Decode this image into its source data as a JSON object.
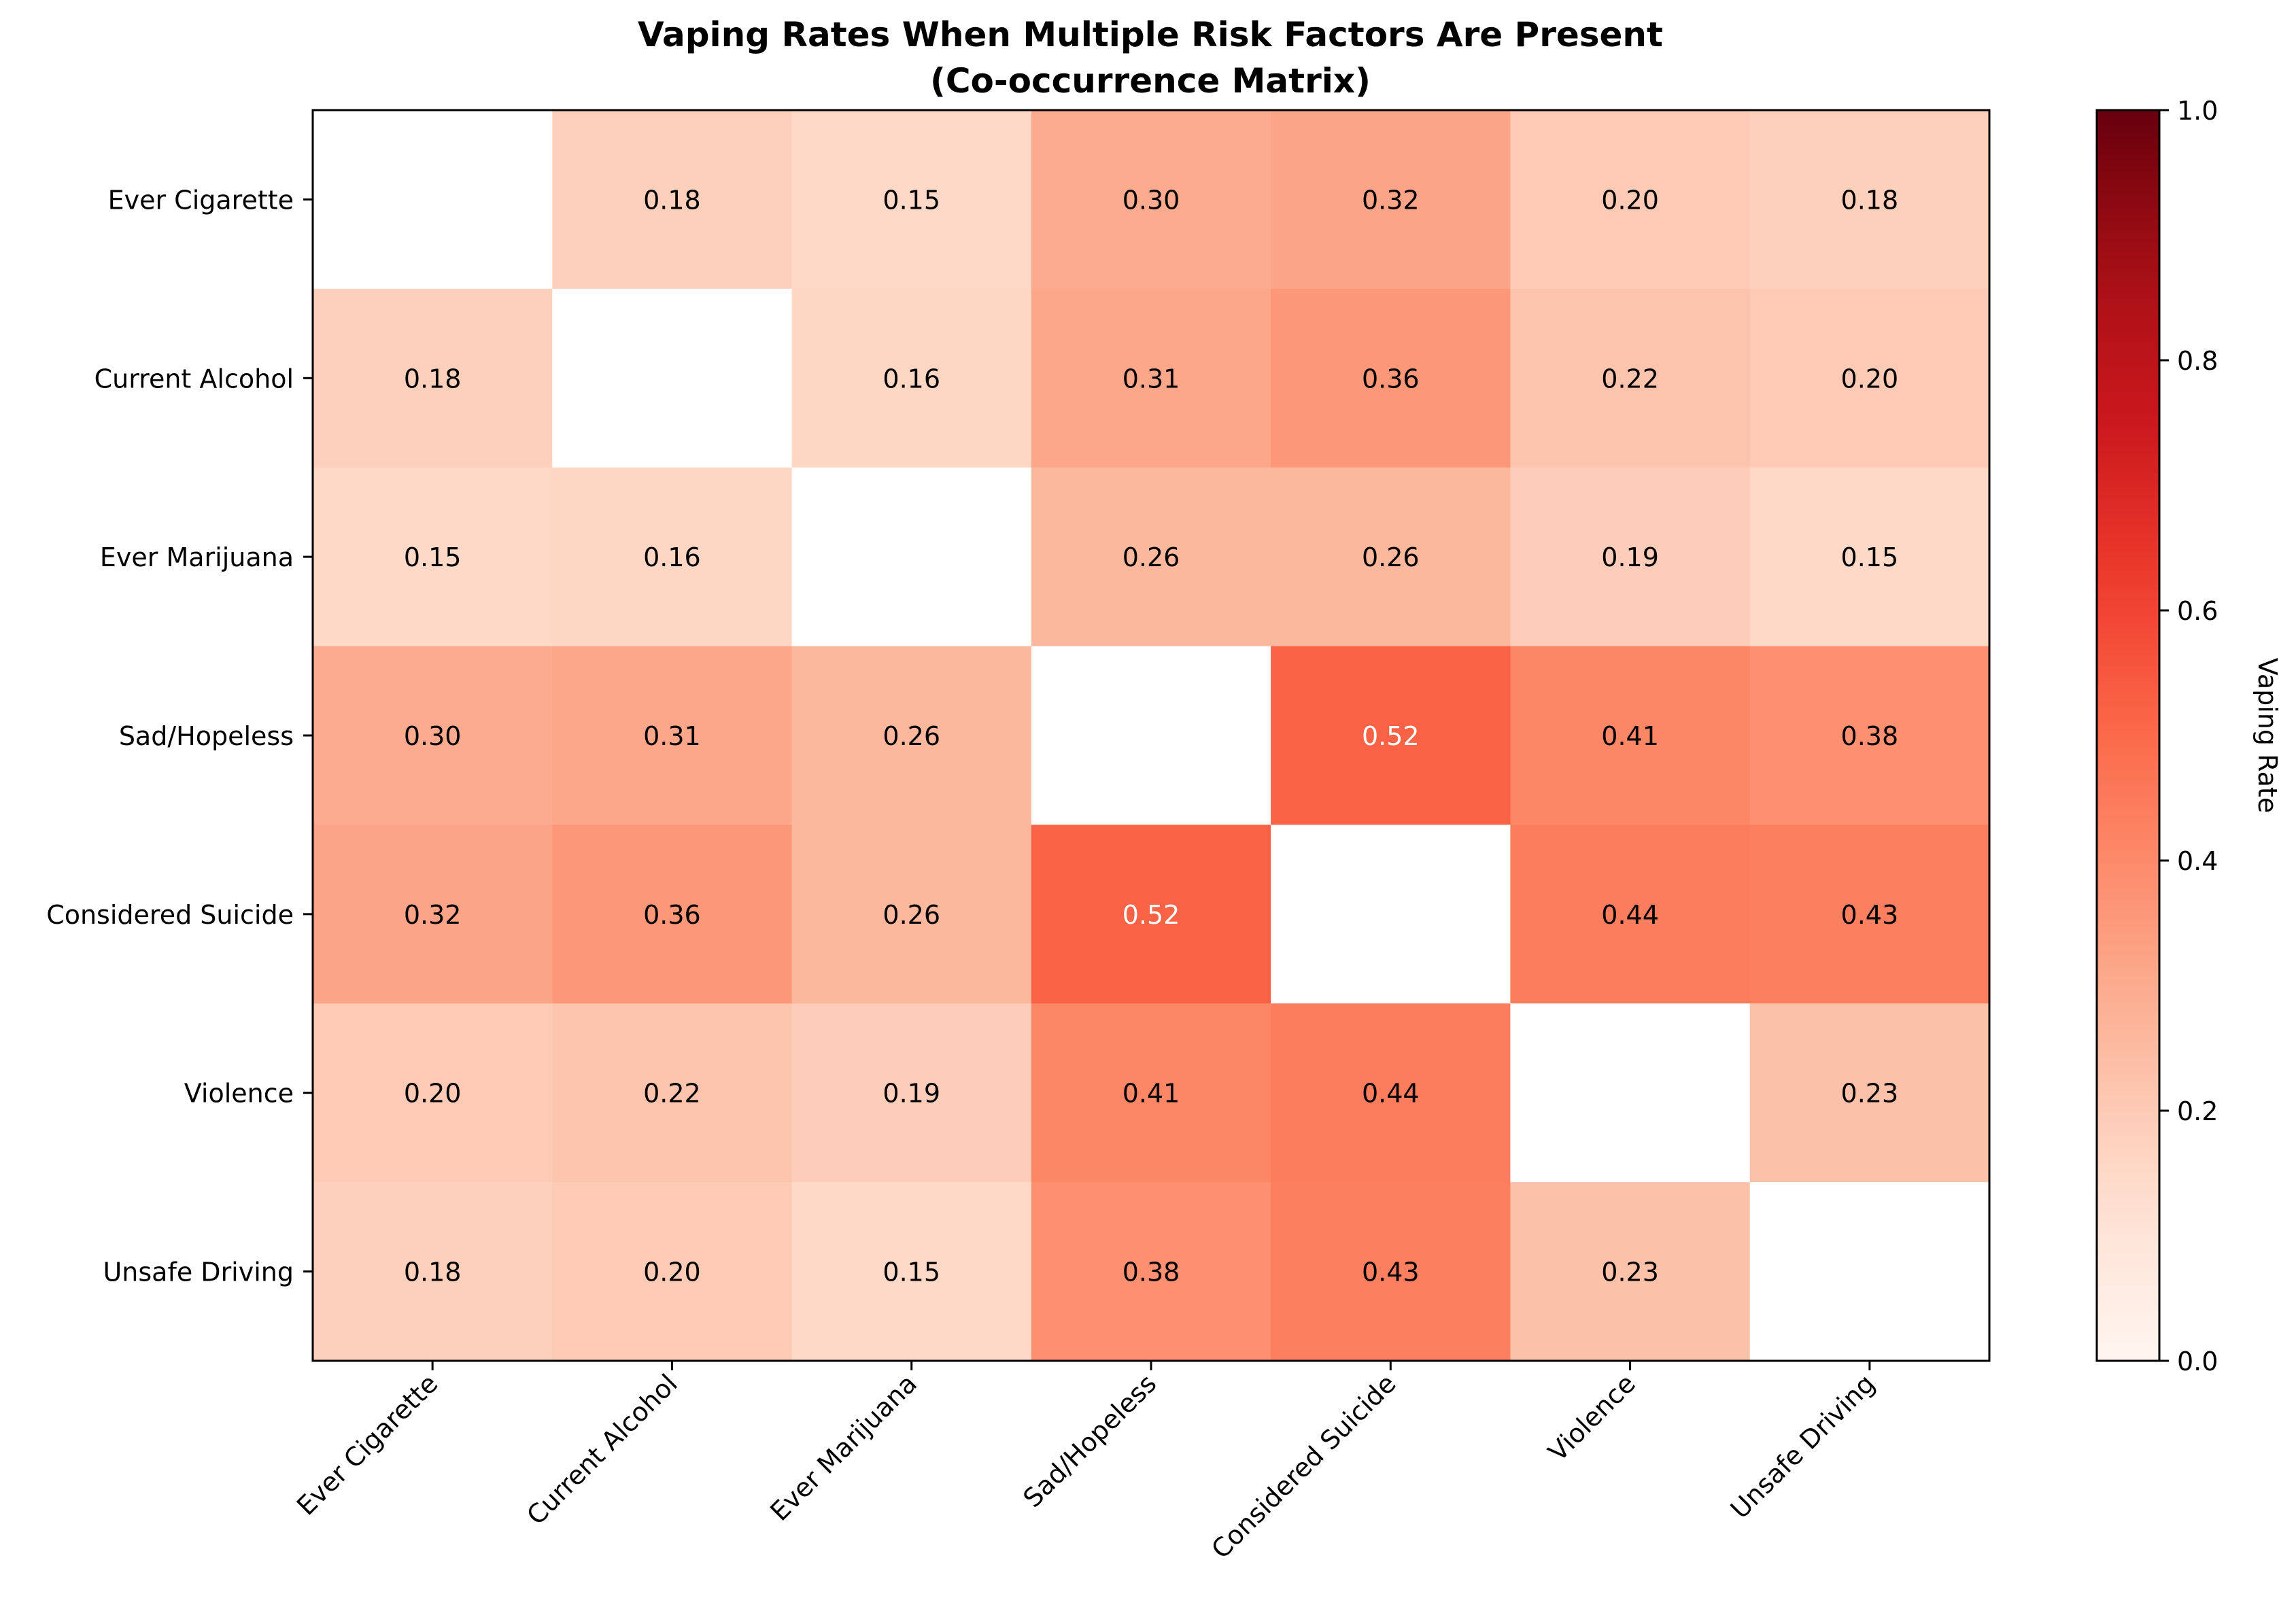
{
  "chart_data": {
    "type": "heatmap",
    "title": "Vaping Rates When Multiple Risk Factors Are Present",
    "subtitle": "(Co-occurrence Matrix)",
    "row_labels": [
      "Ever Cigarette",
      "Current Alcohol",
      "Ever Marijuana",
      "Sad/Hopeless",
      "Considered Suicide",
      "Violence",
      "Unsafe Driving"
    ],
    "col_labels": [
      "Ever Cigarette",
      "Current Alcohol",
      "Ever Marijuana",
      "Sad/Hopeless",
      "Considered Suicide",
      "Violence",
      "Unsafe Driving"
    ],
    "values": [
      [
        null,
        0.18,
        0.15,
        0.3,
        0.32,
        0.2,
        0.18
      ],
      [
        0.18,
        null,
        0.16,
        0.31,
        0.36,
        0.22,
        0.2
      ],
      [
        0.15,
        0.16,
        null,
        0.26,
        0.26,
        0.19,
        0.15
      ],
      [
        0.3,
        0.31,
        0.26,
        null,
        0.52,
        0.41,
        0.38
      ],
      [
        0.32,
        0.36,
        0.26,
        0.52,
        null,
        0.44,
        0.43
      ],
      [
        0.2,
        0.22,
        0.19,
        0.41,
        0.44,
        null,
        0.23
      ],
      [
        0.18,
        0.2,
        0.15,
        0.38,
        0.43,
        0.23,
        null
      ]
    ],
    "colormap": "Reds",
    "vmin": 0,
    "vmax": 1,
    "colorbar": {
      "label": "Vaping Rate",
      "ticks": [
        0.0,
        0.2,
        0.4,
        0.6,
        0.8,
        1.0
      ],
      "tick_labels": [
        "0.0",
        "0.2",
        "0.4",
        "0.6",
        "0.8",
        "1.0"
      ]
    },
    "grid": false
  }
}
